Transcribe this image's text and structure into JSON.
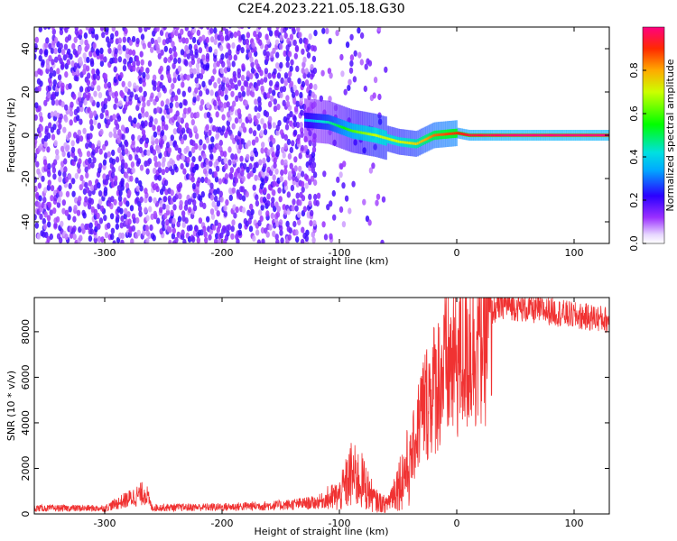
{
  "title": "C2E4.2023.221.05.18.G30",
  "chart_data": [
    {
      "type": "heatmap",
      "xlabel": "Height of straight line (km)",
      "ylabel": "Frequency (Hz)",
      "xlim": [
        -360,
        130
      ],
      "ylim": [
        -50,
        50
      ],
      "xticks": [
        -300,
        -200,
        -100,
        0,
        100
      ],
      "yticks": [
        -40,
        -20,
        0,
        20,
        40
      ],
      "colorbar": {
        "label": "Normalized spectral amplitude",
        "range": [
          0,
          1
        ],
        "ticks": [
          0.0,
          0.2,
          0.4,
          0.6,
          0.8
        ],
        "colormap": "rainbow"
      },
      "features": {
        "noise_region": [
          -360,
          -120
        ],
        "sparse_region": [
          -120,
          -60
        ],
        "signal_ridge": [
          {
            "x": -130,
            "y": 7,
            "amp": 0.35
          },
          {
            "x": -110,
            "y": 6,
            "amp": 0.45
          },
          {
            "x": -90,
            "y": 2,
            "amp": 0.6
          },
          {
            "x": -70,
            "y": 0,
            "amp": 0.7
          },
          {
            "x": -50,
            "y": -3,
            "amp": 0.7
          },
          {
            "x": -35,
            "y": -4,
            "amp": 0.75
          },
          {
            "x": -20,
            "y": 0,
            "amp": 0.85
          },
          {
            "x": 0,
            "y": 1,
            "amp": 0.9
          },
          {
            "x": 10,
            "y": 0,
            "amp": 0.95
          },
          {
            "x": 50,
            "y": 0,
            "amp": 1.0
          },
          {
            "x": 100,
            "y": 0,
            "amp": 1.0
          },
          {
            "x": 130,
            "y": 0,
            "amp": 1.0
          }
        ]
      }
    },
    {
      "type": "line",
      "xlabel": "Height of straight line (km)",
      "ylabel": "SNR (10 * v/v)",
      "xlim": [
        -360,
        130
      ],
      "ylim": [
        0,
        9500
      ],
      "xticks": [
        -300,
        -200,
        -100,
        0,
        100
      ],
      "yticks": [
        0,
        2000,
        4000,
        6000,
        8000
      ],
      "color": "#f03232",
      "series": [
        {
          "x": [
            -360,
            -300,
            -265,
            -260,
            -200,
            -150,
            -120,
            -100,
            -90,
            -80,
            -70,
            -60,
            -50,
            -40,
            -30,
            -20,
            -10,
            0,
            10,
            20,
            30,
            40,
            60,
            80,
            100,
            120,
            130
          ],
          "values": [
            250,
            250,
            950,
            280,
            300,
            380,
            500,
            800,
            1700,
            1400,
            600,
            400,
            1300,
            2200,
            4500,
            5500,
            6300,
            6800,
            7400,
            8000,
            8900,
            9200,
            9000,
            8900,
            8700,
            8600,
            8500
          ]
        }
      ]
    }
  ]
}
